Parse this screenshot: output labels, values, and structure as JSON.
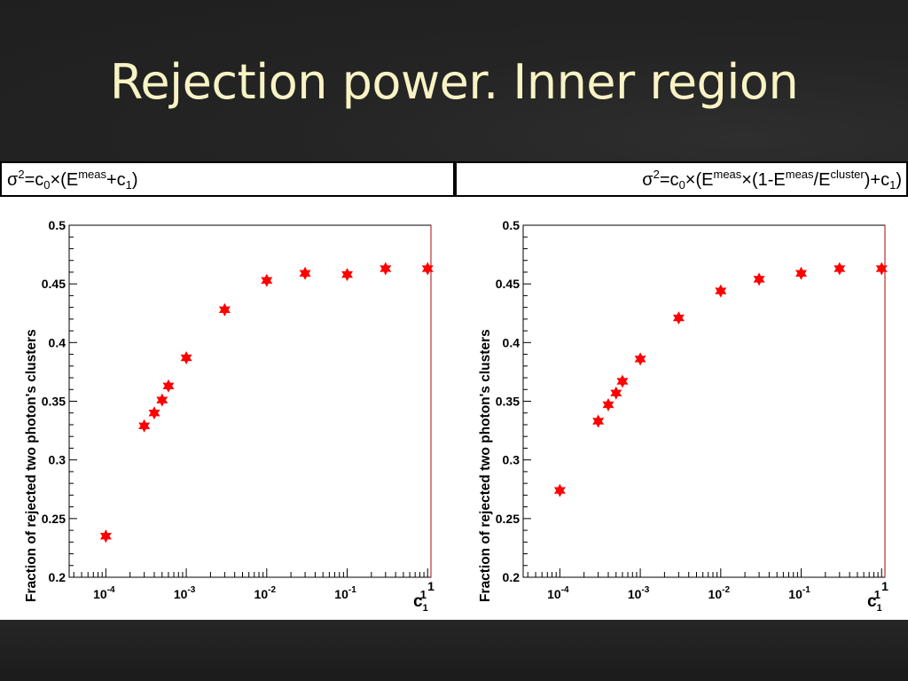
{
  "slide": {
    "title": "Rejection power. Inner region"
  },
  "formulas": {
    "left": {
      "sigma": "σ",
      "sq": "2",
      "eq": "=c",
      "sub0": "0",
      "times": "×(E",
      "meas": "meas",
      "rest": "+c",
      "sub1": "1",
      "close": ")"
    },
    "right": {
      "sigma": "σ",
      "sq": "2",
      "eq": "=c",
      "sub0": "0",
      "times": "×(E",
      "meas": "meas",
      "mid": "×(1-E",
      "meas2": "meas",
      "slash": "/E",
      "cluster": "cluster",
      "rest": ")+c",
      "sub1": "1",
      "close": ")"
    }
  },
  "colors": {
    "marker": "#ff0000",
    "frame": "#000000",
    "title": "#f7f3c4"
  },
  "chart_data": [
    {
      "type": "scatter",
      "title": "",
      "xlabel": "c",
      "xlabel_sub": "1",
      "xlabel_sup": "1",
      "ylabel": "Fraction of rejected two photon's clusters",
      "x_scale": "log",
      "xlim": [
        3.5e-05,
        1.1
      ],
      "ylim": [
        0.2,
        0.5
      ],
      "yticks": [
        0.2,
        0.25,
        0.3,
        0.35,
        0.4,
        0.45,
        0.5
      ],
      "ytick_labels": [
        "0.2",
        "0.25",
        "0.3",
        "0.35",
        "0.4",
        "0.45",
        "0.5"
      ],
      "xticks": [
        0.0001,
        0.001,
        0.01,
        0.1
      ],
      "xtick_labels": [
        {
          "base": "10",
          "exp": "-4"
        },
        {
          "base": "10",
          "exp": "-3"
        },
        {
          "base": "10",
          "exp": "-2"
        },
        {
          "base": "10",
          "exp": "-1"
        }
      ],
      "xtick_last_label": "1",
      "marker": "star",
      "x": [
        0.0001,
        0.0003,
        0.0004,
        0.0005,
        0.0006,
        0.001,
        0.003,
        0.01,
        0.03,
        0.1,
        0.3,
        1.0
      ],
      "y": [
        0.235,
        0.329,
        0.34,
        0.351,
        0.363,
        0.387,
        0.428,
        0.453,
        0.459,
        0.458,
        0.463,
        0.463
      ]
    },
    {
      "type": "scatter",
      "title": "",
      "xlabel": "c",
      "xlabel_sub": "1",
      "xlabel_sup": "1",
      "ylabel": "Fraction of rejected two photon's clusters",
      "x_scale": "log",
      "xlim": [
        3.5e-05,
        1.1
      ],
      "ylim": [
        0.2,
        0.5
      ],
      "yticks": [
        0.2,
        0.25,
        0.3,
        0.35,
        0.4,
        0.45,
        0.5
      ],
      "ytick_labels": [
        "0.2",
        "0.25",
        "0.3",
        "0.35",
        "0.4",
        "0.45",
        "0.5"
      ],
      "xticks": [
        0.0001,
        0.001,
        0.01,
        0.1
      ],
      "xtick_labels": [
        {
          "base": "10",
          "exp": "-4"
        },
        {
          "base": "10",
          "exp": "-3"
        },
        {
          "base": "10",
          "exp": "-2"
        },
        {
          "base": "10",
          "exp": "-1"
        }
      ],
      "xtick_last_label": "1",
      "marker": "star",
      "x": [
        0.0001,
        0.0003,
        0.0004,
        0.0005,
        0.0006,
        0.001,
        0.003,
        0.01,
        0.03,
        0.1,
        0.3,
        1.0
      ],
      "y": [
        0.274,
        0.333,
        0.347,
        0.357,
        0.367,
        0.386,
        0.421,
        0.444,
        0.454,
        0.459,
        0.463,
        0.463
      ]
    }
  ]
}
